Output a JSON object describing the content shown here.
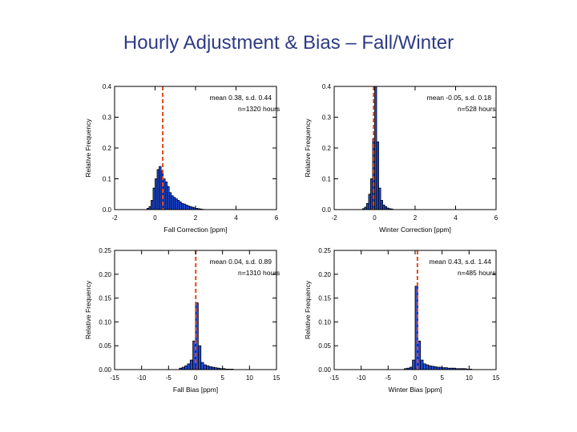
{
  "title": "Hourly Adjustment & Bias – Fall/Winter",
  "colors": {
    "bars": "#1f4de6",
    "outline": "#000000",
    "mean_line": "#e04a1a"
  },
  "chart_data": [
    {
      "type": "bar",
      "name": "fall-correction",
      "xlabel": "Fall Correction [ppm]",
      "ylabel": "Relative Frequency",
      "xlim": [
        -2,
        6
      ],
      "ylim": [
        0,
        0.4
      ],
      "xticks": [
        -2,
        0,
        2,
        4,
        6
      ],
      "yticks": [
        "0.0",
        "0.1",
        "0.2",
        "0.3",
        "0.4"
      ],
      "mean_line": 0.38,
      "annotation": [
        "mean 0.38, s.d. 0.44",
        "n=1320 hours"
      ],
      "bin_start": -0.4,
      "bin_width": 0.1,
      "values": [
        0.004,
        0.01,
        0.03,
        0.07,
        0.1,
        0.13,
        0.14,
        0.125,
        0.1,
        0.09,
        0.075,
        0.055,
        0.045,
        0.04,
        0.035,
        0.03,
        0.025,
        0.02,
        0.018,
        0.015,
        0.012,
        0.01,
        0.008,
        0.006,
        0.004,
        0.003,
        0.002,
        0.001
      ]
    },
    {
      "type": "bar",
      "name": "winter-correction",
      "xlabel": "Winter Correction [ppm]",
      "ylabel": "Relative Frequency",
      "xlim": [
        -2,
        6
      ],
      "ylim": [
        0,
        0.4
      ],
      "xticks": [
        -2,
        0,
        2,
        4,
        6
      ],
      "yticks": [
        "0.0",
        "0.1",
        "0.2",
        "0.3",
        "0.4"
      ],
      "mean_line": -0.05,
      "annotation": [
        "mean -0.05, s.d. 0.18",
        "n=528 hours"
      ],
      "bin_start": -0.6,
      "bin_width": 0.1,
      "values": [
        0.003,
        0.008,
        0.02,
        0.05,
        0.1,
        0.23,
        0.4,
        0.22,
        0.07,
        0.03,
        0.015,
        0.01,
        0.005,
        0.003,
        0.002
      ]
    },
    {
      "type": "bar",
      "name": "fall-bias",
      "xlabel": "Fall Bias [ppm]",
      "ylabel": "Relative Frequency",
      "xlim": [
        -15,
        15
      ],
      "ylim": [
        0,
        0.25
      ],
      "xticks": [
        -15,
        -10,
        -5,
        0,
        5,
        10,
        15
      ],
      "yticks": [
        "0.00",
        "0.05",
        "0.10",
        "0.15",
        "0.20",
        "0.25"
      ],
      "mean_line": 0.04,
      "annotation": [
        "mean 0.04, s.d. 0.89",
        "n=1310 hours"
      ],
      "bin_start": -3,
      "bin_width": 0.5,
      "values": [
        0.003,
        0.005,
        0.008,
        0.012,
        0.02,
        0.06,
        0.14,
        0.05,
        0.015,
        0.01,
        0.008,
        0.006,
        0.005,
        0.004,
        0.003,
        0.002,
        0.002,
        0.001,
        0.001,
        0.001
      ]
    },
    {
      "type": "bar",
      "name": "winter-bias",
      "xlabel": "Winter Bias [ppm]",
      "ylabel": "Relative Frequency",
      "xlim": [
        -15,
        15
      ],
      "ylim": [
        0,
        0.25
      ],
      "xticks": [
        -15,
        -10,
        -5,
        0,
        5,
        10,
        15
      ],
      "yticks": [
        "0.00",
        "0.05",
        "0.10",
        "0.15",
        "0.20",
        "0.25"
      ],
      "mean_line": 0.43,
      "annotation": [
        "mean 0.43, s.d. 1.44",
        "n=485 hours"
      ],
      "bin_start": -2,
      "bin_width": 0.5,
      "values": [
        0.002,
        0.003,
        0.005,
        0.02,
        0.175,
        0.06,
        0.02,
        0.012,
        0.01,
        0.008,
        0.007,
        0.006,
        0.005,
        0.005,
        0.004,
        0.004,
        0.003,
        0.003,
        0.003,
        0.002,
        0.002,
        0.002,
        0.002,
        0.001,
        0.001
      ]
    }
  ]
}
